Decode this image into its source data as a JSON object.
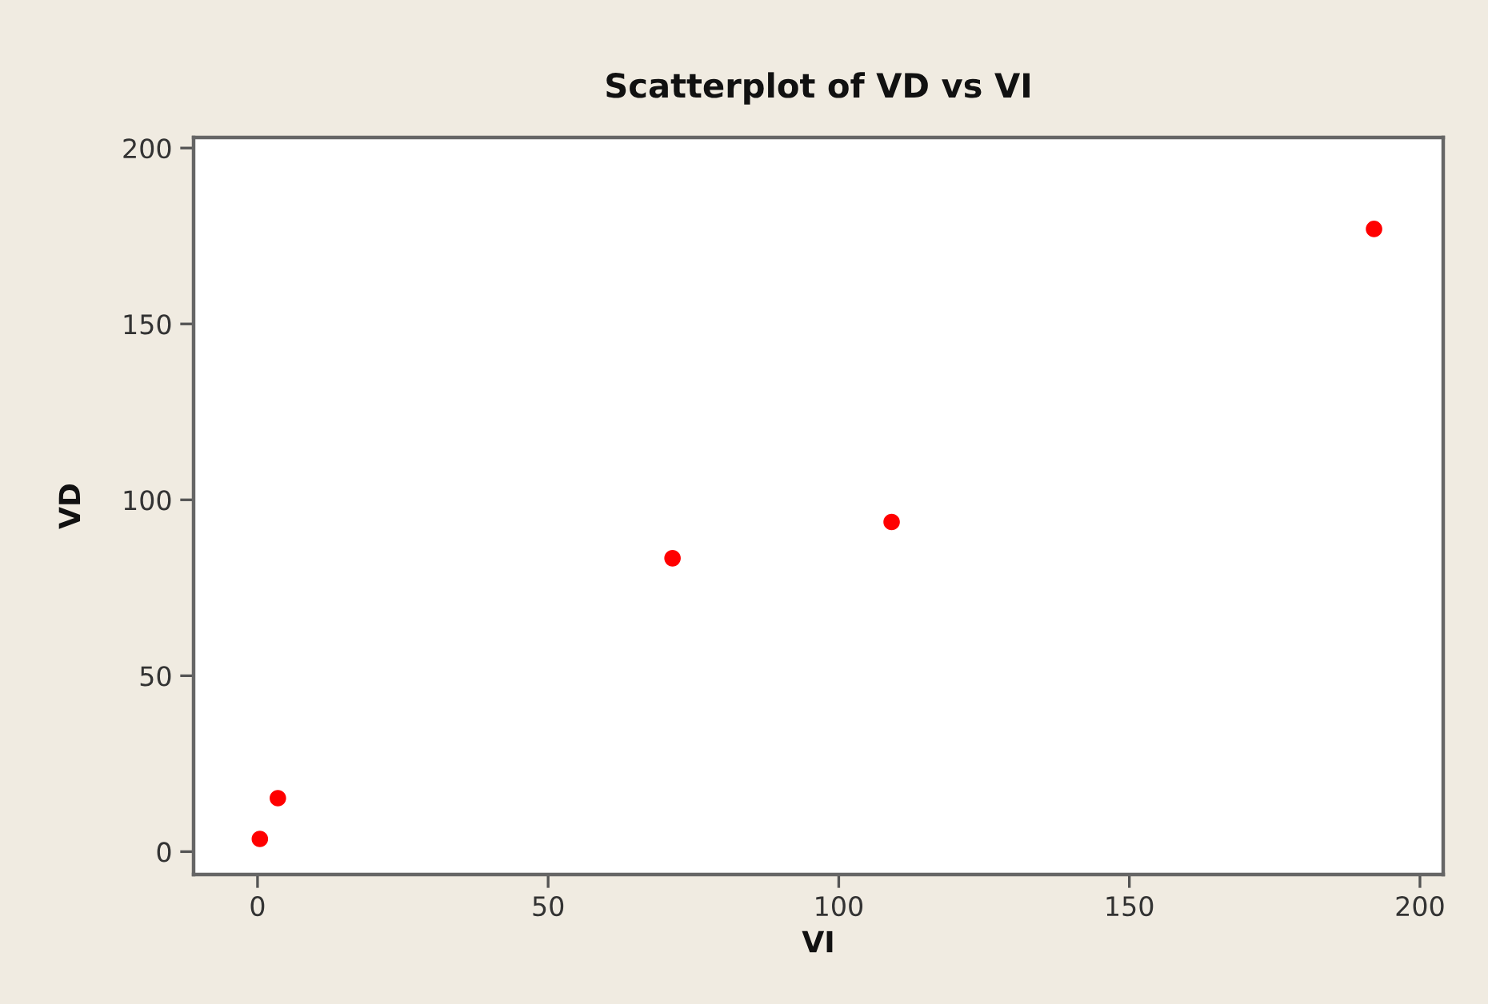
{
  "chart_data": {
    "type": "scatter",
    "title": "Scatterplot of VD vs VI",
    "xlabel": "VI",
    "ylabel": "VD",
    "x": [
      0.4,
      3.5,
      71.4,
      109.1,
      192.1
    ],
    "series": [
      {
        "color": "#ff0000",
        "values": [
          3.6,
          15.2,
          83.4,
          93.7,
          177.0
        ]
      }
    ],
    "xlim": [
      -11,
      204
    ],
    "ylim": [
      -6.5,
      203
    ],
    "xticks": [
      0,
      50,
      100,
      150,
      200
    ],
    "yticks": [
      0,
      50,
      100,
      150,
      200
    ],
    "marker": "circle"
  }
}
